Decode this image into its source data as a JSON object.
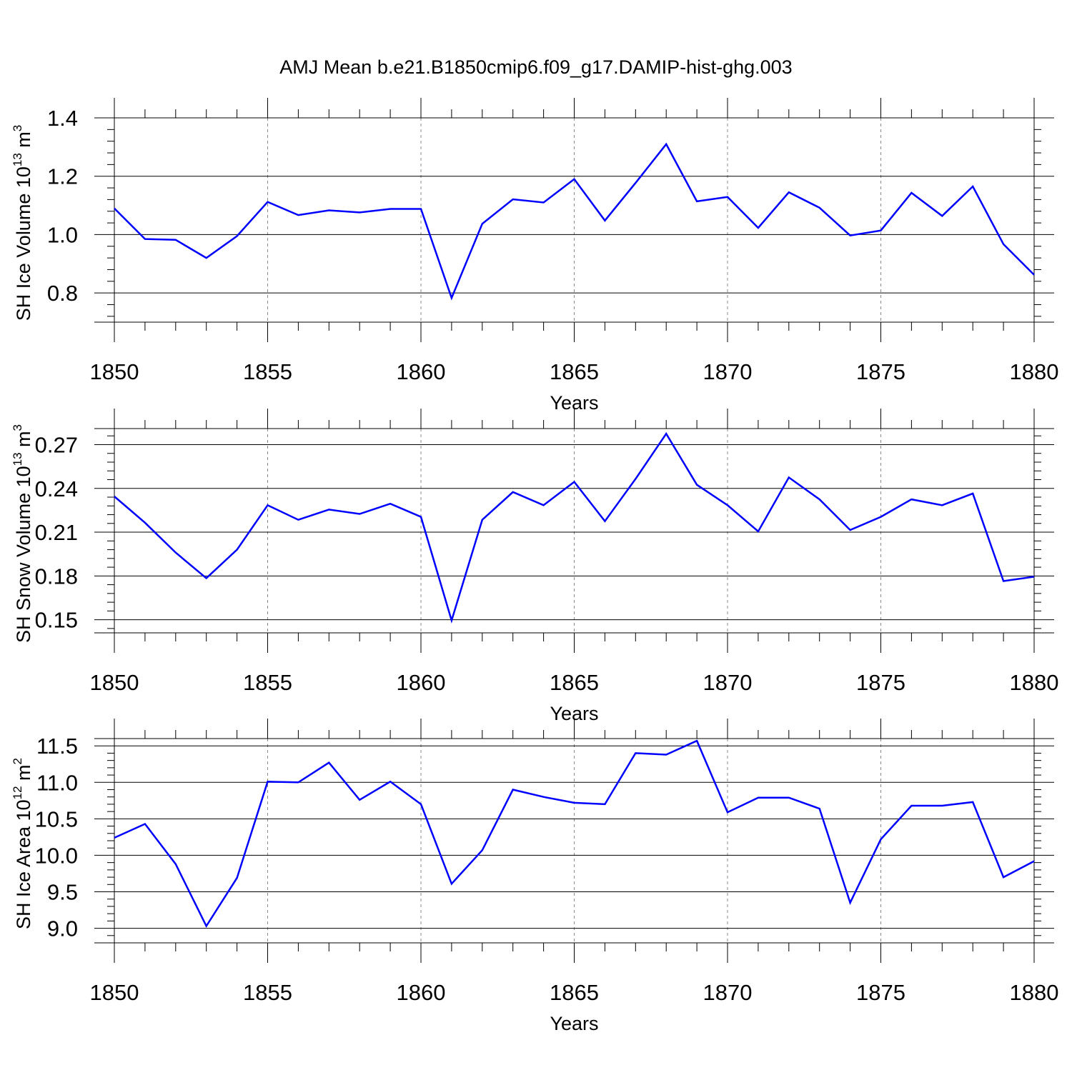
{
  "title": "AMJ Mean b.e21.B1850cmip6.f09_g17.DAMIP-hist-ghg.003",
  "line_color": "#0000ff",
  "chart_data": [
    {
      "type": "line",
      "title": "",
      "xlabel": "Years",
      "ylabel": "SH Ice Volume 10",
      "ylabel_exp": "13",
      "ylabel_unit": " m",
      "ylabel_unit_exp": "3",
      "xlim": [
        1850,
        1880
      ],
      "ylim": [
        0.7,
        1.4
      ],
      "xticks": [
        1850,
        1855,
        1860,
        1865,
        1870,
        1875,
        1880
      ],
      "xtick_labels": [
        "1850",
        "1855",
        "1860",
        "1865",
        "1870",
        "1875",
        "1880"
      ],
      "yticks": [
        0.8,
        1.0,
        1.2,
        1.4
      ],
      "ytick_labels": [
        "0.8",
        "1.0",
        "1.2",
        "1.4"
      ],
      "grid": "vertical dashed",
      "x": [
        1850,
        1851,
        1852,
        1853,
        1854,
        1855,
        1856,
        1857,
        1858,
        1859,
        1860,
        1861,
        1862,
        1863,
        1864,
        1865,
        1866,
        1867,
        1868,
        1869,
        1870,
        1871,
        1872,
        1873,
        1874,
        1875,
        1876,
        1877,
        1878,
        1879,
        1880
      ],
      "series": [
        {
          "name": "SH Ice Volume",
          "values": [
            1.09,
            0.985,
            0.982,
            0.92,
            0.995,
            1.112,
            1.067,
            1.083,
            1.076,
            1.088,
            1.088,
            0.783,
            1.037,
            1.121,
            1.11,
            1.19,
            1.048,
            1.177,
            1.31,
            1.114,
            1.129,
            1.023,
            1.145,
            1.092,
            0.997,
            1.014,
            1.143,
            1.064,
            1.165,
            0.967,
            0.862
          ]
        }
      ]
    },
    {
      "type": "line",
      "title": "",
      "xlabel": "Years",
      "ylabel": "SH Snow Volume 10",
      "ylabel_exp": "13",
      "ylabel_unit": " m",
      "ylabel_unit_exp": "3",
      "xlim": [
        1850,
        1880
      ],
      "ylim": [
        0.141,
        0.281
      ],
      "xticks": [
        1850,
        1855,
        1860,
        1865,
        1870,
        1875,
        1880
      ],
      "xtick_labels": [
        "1850",
        "1855",
        "1860",
        "1865",
        "1870",
        "1875",
        "1880"
      ],
      "yticks": [
        0.15,
        0.18,
        0.21,
        0.24,
        0.27
      ],
      "ytick_labels": [
        "0.15",
        "0.18",
        "0.21",
        "0.24",
        "0.27"
      ],
      "grid": "vertical dashed",
      "x": [
        1850,
        1851,
        1852,
        1853,
        1854,
        1855,
        1856,
        1857,
        1858,
        1859,
        1860,
        1861,
        1862,
        1863,
        1864,
        1865,
        1866,
        1867,
        1868,
        1869,
        1870,
        1871,
        1872,
        1873,
        1874,
        1875,
        1876,
        1877,
        1878,
        1879,
        1880
      ],
      "series": [
        {
          "name": "SH Snow Volume",
          "values": [
            0.2345,
            0.2165,
            0.196,
            0.1785,
            0.198,
            0.2285,
            0.2185,
            0.2255,
            0.2225,
            0.2295,
            0.2205,
            0.1495,
            0.2185,
            0.2375,
            0.2285,
            0.2445,
            0.2175,
            0.2465,
            0.2775,
            0.2425,
            0.2285,
            0.2105,
            0.2475,
            0.2325,
            0.2115,
            0.2205,
            0.2325,
            0.2285,
            0.2365,
            0.1765,
            0.1795
          ]
        }
      ]
    },
    {
      "type": "line",
      "title": "",
      "xlabel": "Years",
      "ylabel": "SH Ice Area 10",
      "ylabel_exp": "12",
      "ylabel_unit": " m",
      "ylabel_unit_exp": "2",
      "xlim": [
        1850,
        1880
      ],
      "ylim": [
        8.8,
        11.6
      ],
      "xticks": [
        1850,
        1855,
        1860,
        1865,
        1870,
        1875,
        1880
      ],
      "xtick_labels": [
        "1850",
        "1855",
        "1860",
        "1865",
        "1870",
        "1875",
        "1880"
      ],
      "yticks": [
        9.0,
        9.5,
        10.0,
        10.5,
        11.0,
        11.5
      ],
      "ytick_labels": [
        "9.0",
        "9.5",
        "10.0",
        "10.5",
        "11.0",
        "11.5"
      ],
      "grid": "vertical dashed",
      "x": [
        1850,
        1851,
        1852,
        1853,
        1854,
        1855,
        1856,
        1857,
        1858,
        1859,
        1860,
        1861,
        1862,
        1863,
        1864,
        1865,
        1866,
        1867,
        1868,
        1869,
        1870,
        1871,
        1872,
        1873,
        1874,
        1875,
        1876,
        1877,
        1878,
        1879,
        1880
      ],
      "series": [
        {
          "name": "SH Ice Area",
          "values": [
            10.24,
            10.43,
            9.88,
            9.03,
            9.69,
            11.01,
            11.0,
            11.27,
            10.76,
            11.01,
            10.7,
            9.61,
            10.07,
            10.9,
            10.8,
            10.72,
            10.7,
            11.4,
            11.38,
            11.57,
            10.59,
            10.79,
            10.79,
            10.64,
            9.35,
            10.22,
            10.68,
            10.68,
            10.73,
            9.7,
            9.92
          ]
        }
      ]
    }
  ]
}
